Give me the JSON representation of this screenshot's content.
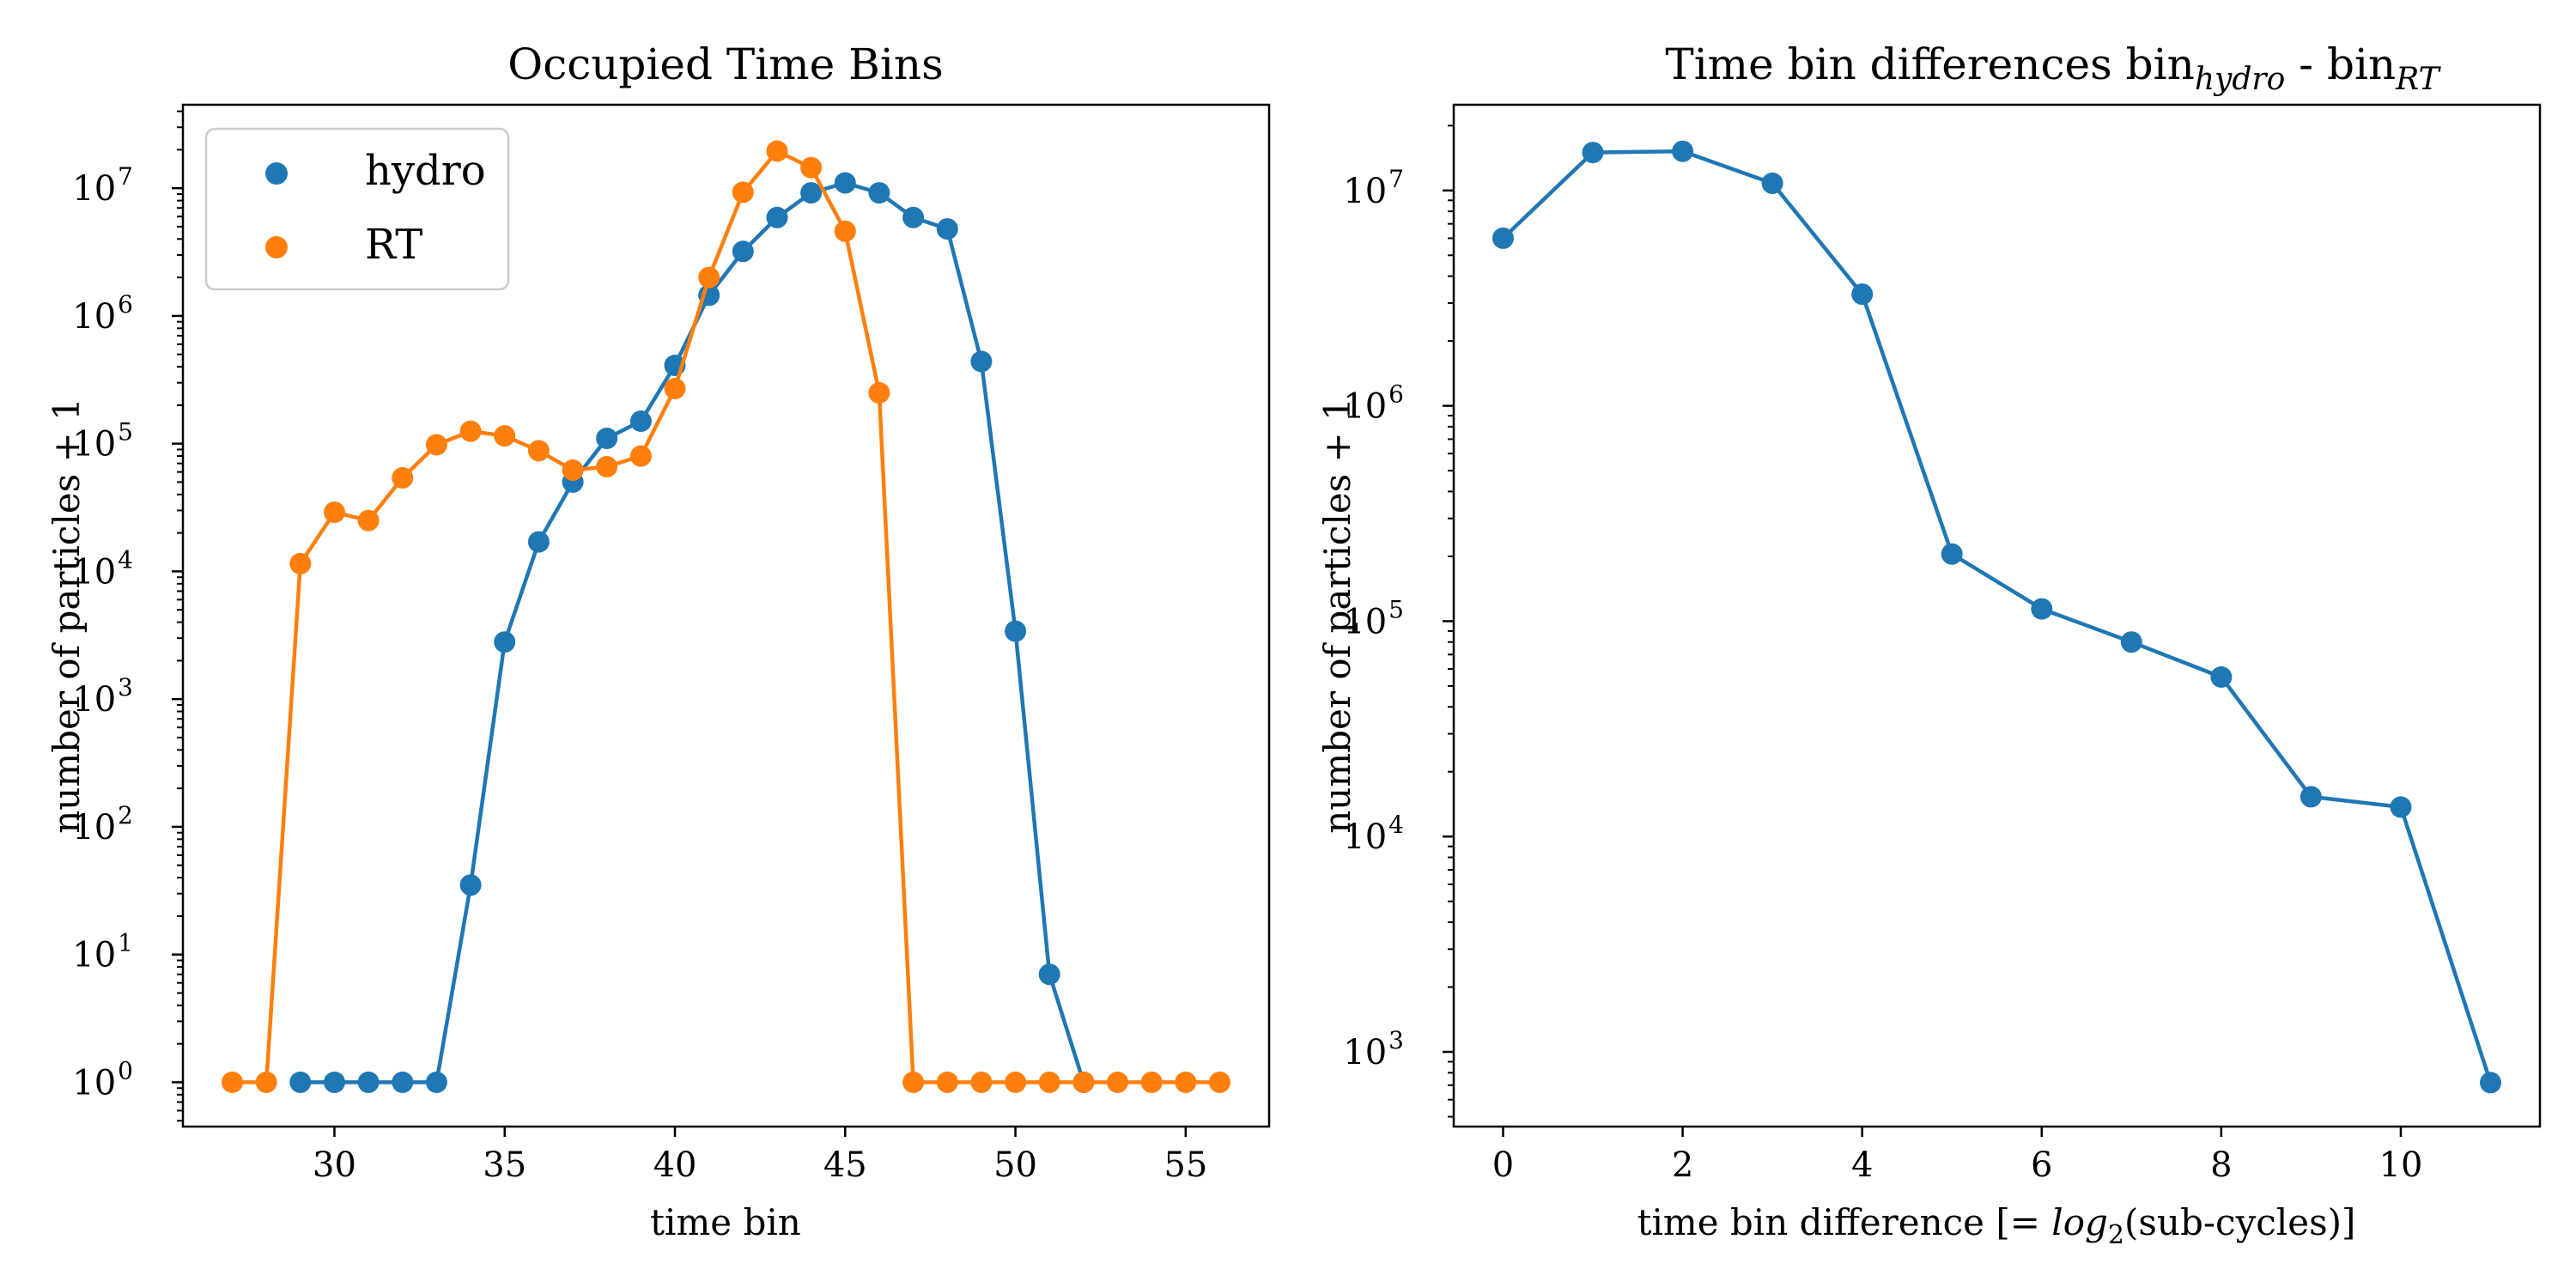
{
  "chart_data": [
    {
      "type": "line",
      "title": "Occupied Time Bins",
      "xlabel": "time bin",
      "ylabel": "number of particles + 1",
      "yscale": "log",
      "xlim": [
        25.55,
        57.45
      ],
      "ylim": [
        0.45,
        45000000
      ],
      "xticks": [
        "30",
        "35",
        "40",
        "45",
        "50",
        "55"
      ],
      "yticks": [
        "1",
        "10",
        "100",
        "1000",
        "10000",
        "100000",
        "1000000",
        "10000000"
      ],
      "ytick_exponents": [
        "0",
        "1",
        "2",
        "3",
        "4",
        "5",
        "6",
        "7"
      ],
      "ytick_base": "10",
      "legend_position": "top-left",
      "grid": false,
      "series": [
        {
          "name": "hydro",
          "color": "#1f77b4",
          "x": [
            29,
            30,
            31,
            32,
            33,
            34,
            35,
            36,
            37,
            38,
            39,
            40,
            41,
            42,
            43,
            44,
            45,
            46,
            47,
            48,
            49,
            50,
            51,
            52
          ],
          "y": [
            1,
            1,
            1,
            1,
            1,
            35,
            2800,
            17000,
            50000,
            110000,
            150000,
            410000,
            1450000,
            3200000,
            5900000,
            9200000,
            11000000,
            9200000,
            5900000,
            4800000,
            440000,
            3400,
            7,
            1
          ]
        },
        {
          "name": "RT",
          "color": "#ff7f0e",
          "x": [
            27,
            28,
            29,
            30,
            31,
            32,
            33,
            34,
            35,
            36,
            37,
            38,
            39,
            40,
            41,
            42,
            43,
            44,
            45,
            46,
            47,
            48,
            49,
            50,
            51,
            52,
            53,
            54,
            55,
            56
          ],
          "y": [
            1,
            1,
            11500,
            29000,
            25000,
            54000,
            98000,
            125000,
            115000,
            88000,
            62000,
            66000,
            80000,
            270000,
            2000000,
            9300000,
            19500000,
            14500000,
            4600000,
            250000,
            1,
            1,
            1,
            1,
            1,
            1,
            1,
            1,
            1,
            1
          ]
        }
      ]
    },
    {
      "type": "line",
      "title_main": "Time bin differences bin",
      "title_sub1": "hydro",
      "title_mid": " - bin",
      "title_sub2": "RT",
      "xlabel_main": "time bin difference [= ",
      "xlabel_italic": "log",
      "xlabel_sub": "2",
      "xlabel_end": "(sub-cycles)]",
      "ylabel": "number of particles + 1",
      "yscale": "log",
      "xlim": [
        -0.55,
        11.55
      ],
      "ylim": [
        450,
        25000000
      ],
      "xticks": [
        "0",
        "2",
        "4",
        "6",
        "8",
        "10"
      ],
      "yticks": [
        "1000",
        "10000",
        "100000",
        "1000000",
        "10000000"
      ],
      "ytick_exponents": [
        "3",
        "4",
        "5",
        "6",
        "7"
      ],
      "ytick_base": "10",
      "grid": false,
      "series": [
        {
          "color": "#1f77b4",
          "x": [
            0,
            1,
            2,
            3,
            4,
            5,
            6,
            7,
            8,
            9,
            10,
            11
          ],
          "y": [
            6000000,
            15000000,
            15200000,
            10800000,
            3300000,
            205000,
            114000,
            80000,
            55000,
            15300,
            13700,
            720
          ]
        }
      ]
    }
  ]
}
